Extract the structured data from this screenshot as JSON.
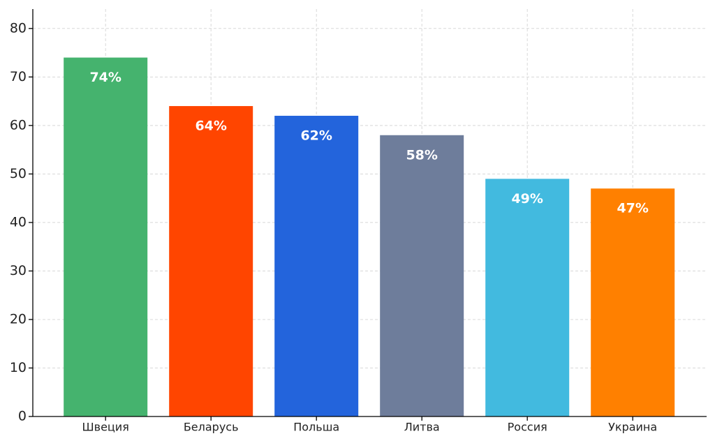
{
  "chart_data": {
    "type": "bar",
    "categories": [
      "Швеция",
      "Беларусь",
      "Польша",
      "Литва",
      "Россия",
      "Украина"
    ],
    "values": [
      74,
      64,
      62,
      58,
      49,
      47
    ],
    "value_labels": [
      "74%",
      "64%",
      "62%",
      "58%",
      "49%",
      "47%"
    ],
    "colors": [
      "#45b36e",
      "#ff4500",
      "#2364dc",
      "#6e7d9b",
      "#42badf",
      "#ff8000"
    ],
    "ylim": [
      0,
      84
    ],
    "yticks": [
      0,
      10,
      20,
      30,
      40,
      50,
      60,
      70,
      80
    ],
    "grid": true
  }
}
